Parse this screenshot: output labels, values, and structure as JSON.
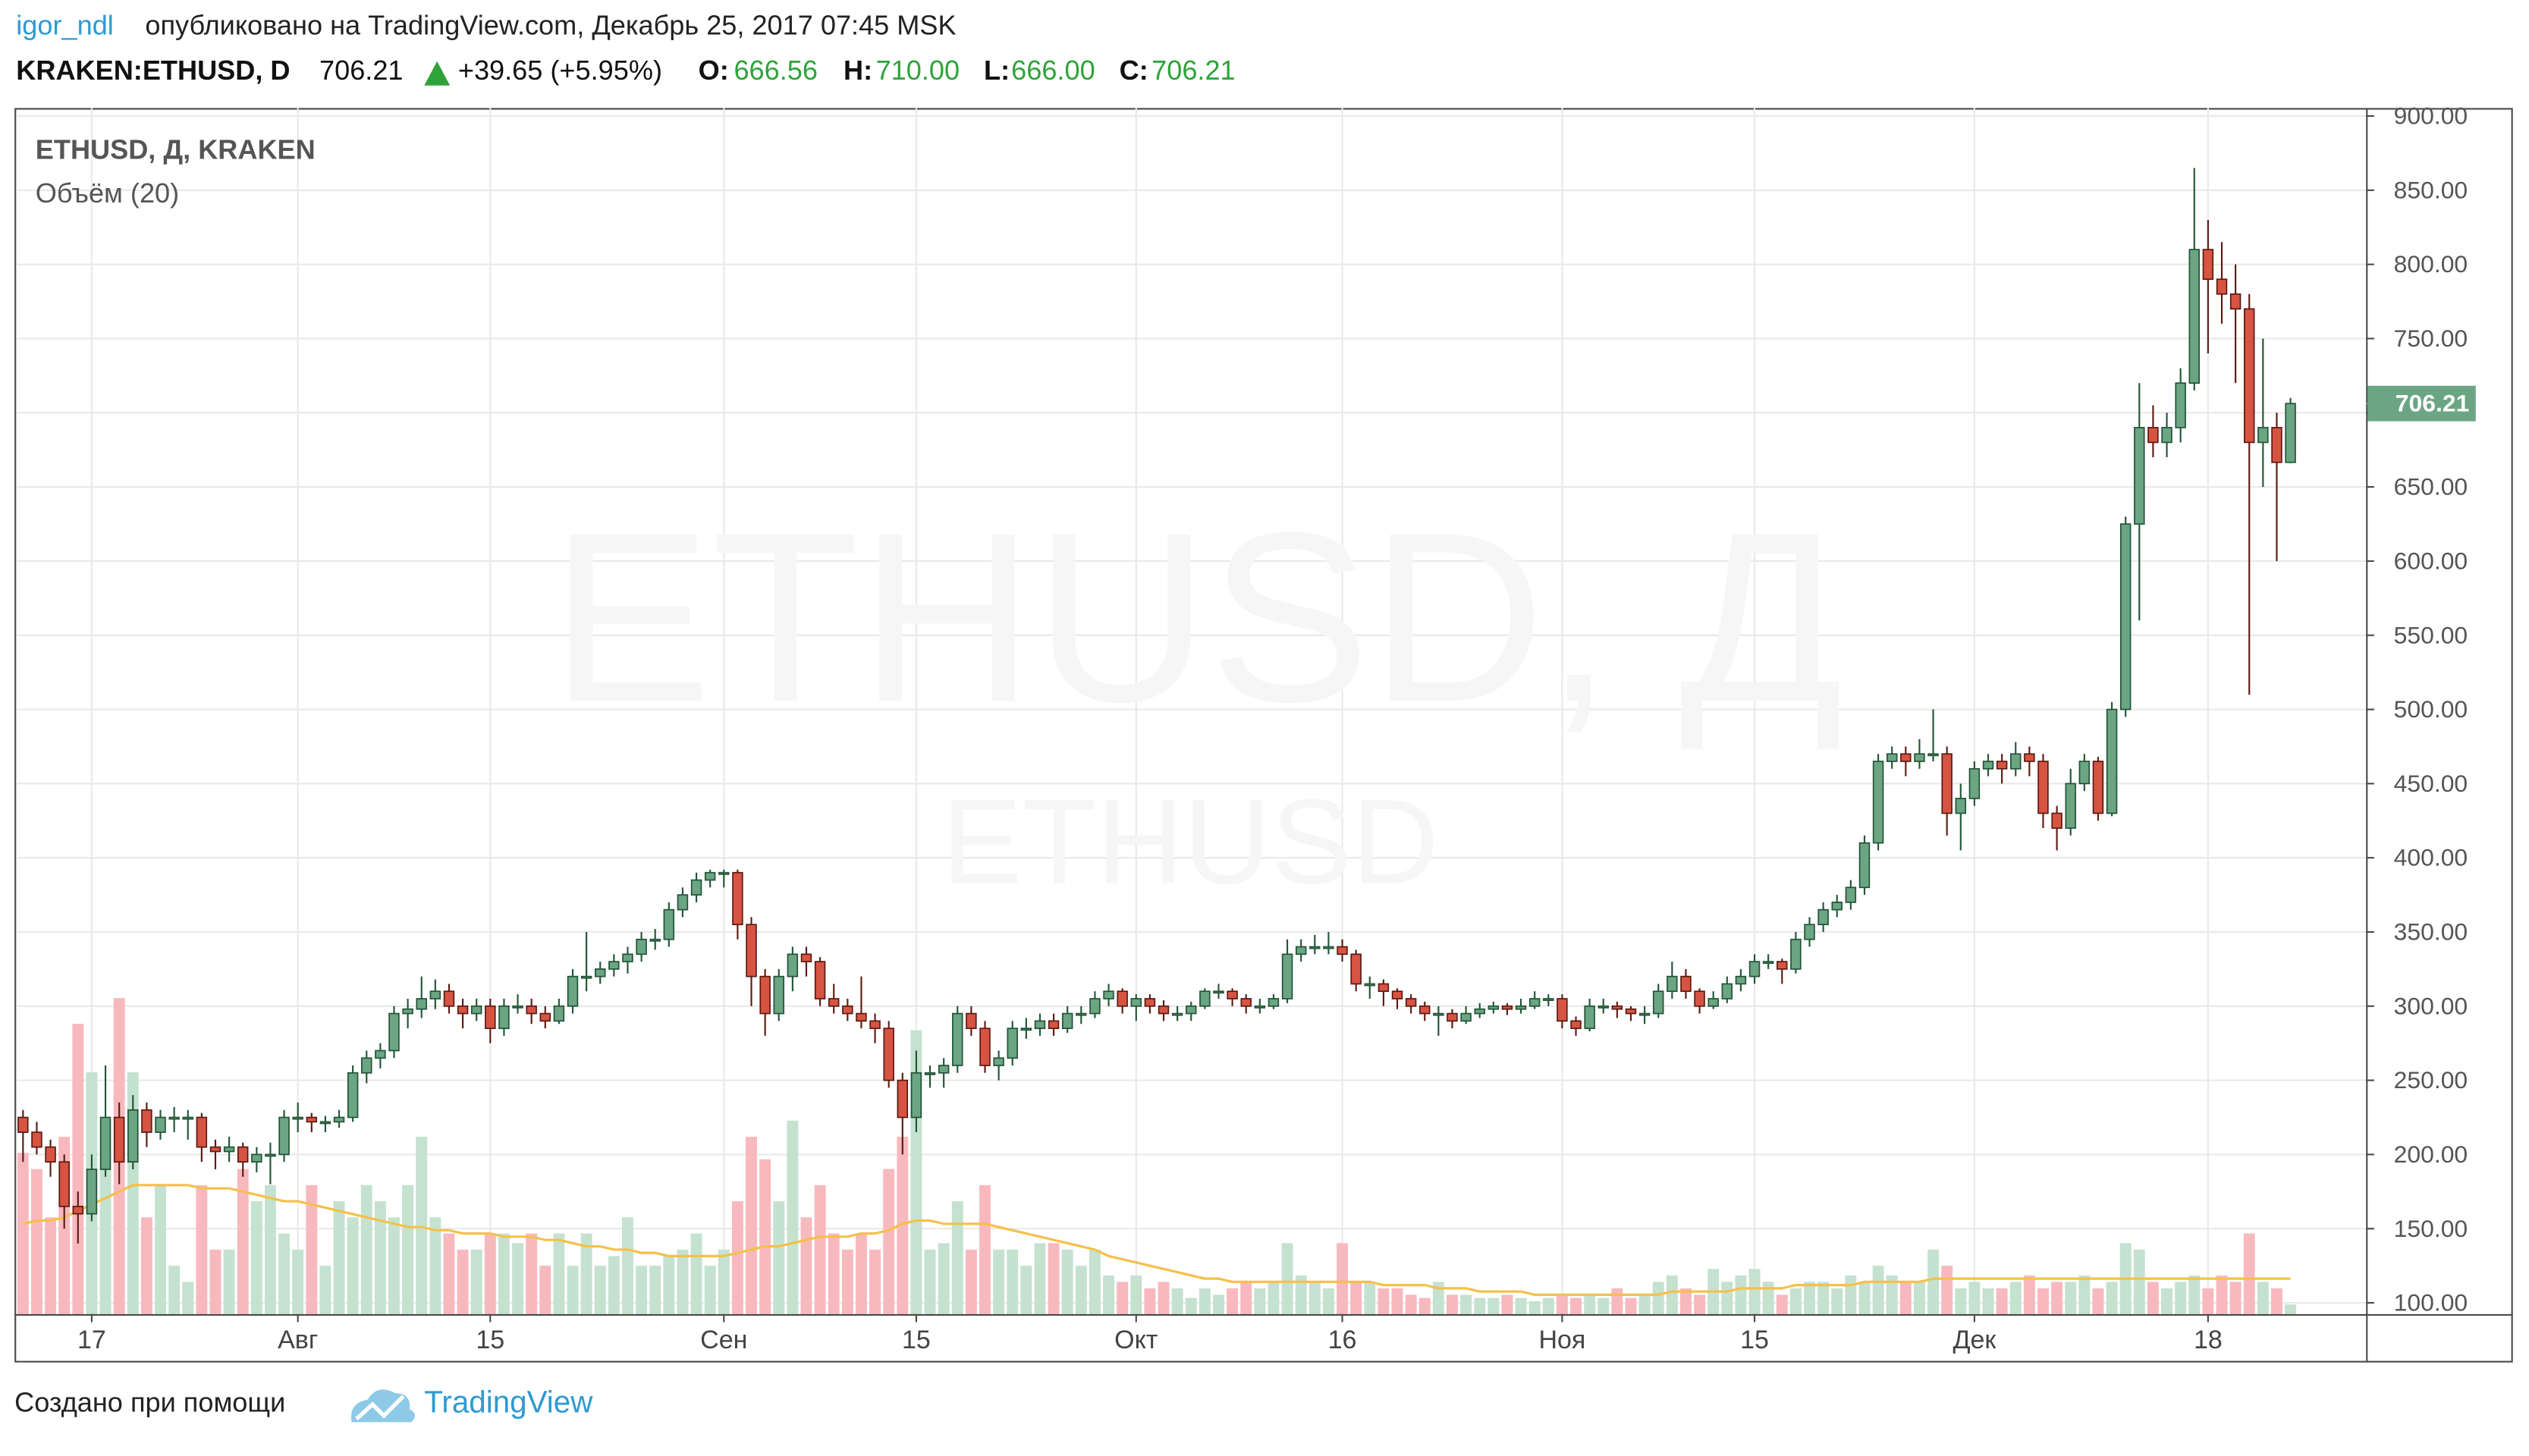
{
  "header": {
    "author": "igor_ndl",
    "published": "опубликовано на TradingView.com, Декабрь 25, 2017 07:45 MSK"
  },
  "quote": {
    "symbol": "KRAKEN:ETHUSD, D",
    "last": "706.21",
    "change": "+39.65 (+5.95%)",
    "fields": [
      [
        "O:",
        "666.56"
      ],
      [
        "H:",
        "710.00"
      ],
      [
        "L:",
        "666.00"
      ],
      [
        "C:",
        "706.21"
      ]
    ]
  },
  "chart_data": {
    "type": "candlestick",
    "title": "ETHUSD, Д, KRAKEN",
    "indicator": "Объём (20)",
    "watermark": "ETHUSD, Д",
    "watermark_sub": "ETHUSD",
    "up_color": "#6ba583",
    "down_color": "#d75442",
    "up_border": "#225437",
    "down_border": "#5b1a13",
    "up_volume_color": "#c4e2cf",
    "down_volume_color": "#f7b9be",
    "ma_color": "#f5c04a",
    "grid": true,
    "ylim": [
      92.4,
      905.4
    ],
    "yticks": [
      {
        "value": 100,
        "label": "100.00"
      },
      {
        "value": 150,
        "label": "150.00"
      },
      {
        "value": 200,
        "label": "200.00"
      },
      {
        "value": 250,
        "label": "250.00"
      },
      {
        "value": 300,
        "label": "300.00"
      },
      {
        "value": 350,
        "label": "350.00"
      },
      {
        "value": 400,
        "label": "400.00"
      },
      {
        "value": 450,
        "label": "450.00"
      },
      {
        "value": 500,
        "label": "500.00"
      },
      {
        "value": 550,
        "label": "550.00"
      },
      {
        "value": 600,
        "label": "600.00"
      },
      {
        "value": 650,
        "label": "650.00"
      },
      {
        "value": 700,
        "label": "700.00"
      },
      {
        "value": 750,
        "label": "750.00"
      },
      {
        "value": 800,
        "label": "800.00"
      },
      {
        "value": 850,
        "label": "850.00"
      },
      {
        "value": 900,
        "label": "900.00"
      }
    ],
    "xlim": [
      -0.5,
      170.5
    ],
    "xticks": [
      {
        "value": 5,
        "label": "17"
      },
      {
        "value": 20,
        "label": "Авг"
      },
      {
        "value": 34,
        "label": "15"
      },
      {
        "value": 51,
        "label": "Сен"
      },
      {
        "value": 65,
        "label": "15"
      },
      {
        "value": 81,
        "label": "Окт"
      },
      {
        "value": 96,
        "label": "16"
      },
      {
        "value": 112,
        "label": "Ноя"
      },
      {
        "value": 126,
        "label": "15"
      },
      {
        "value": 142,
        "label": "Дек"
      },
      {
        "value": 159,
        "label": "18"
      }
    ],
    "volume_ylim": [
      0,
      100
    ],
    "candles": [
      [
        225,
        230,
        195,
        215
      ],
      [
        215,
        222,
        200,
        205
      ],
      [
        205,
        210,
        185,
        195
      ],
      [
        195,
        200,
        150,
        165
      ],
      [
        165,
        175,
        140,
        160
      ],
      [
        160,
        200,
        155,
        190
      ],
      [
        190,
        260,
        185,
        225
      ],
      [
        225,
        235,
        180,
        195
      ],
      [
        195,
        240,
        190,
        230
      ],
      [
        230,
        235,
        205,
        215
      ],
      [
        215,
        230,
        210,
        225
      ],
      [
        225,
        232,
        215,
        225
      ],
      [
        225,
        230,
        210,
        225
      ],
      [
        225,
        228,
        195,
        205
      ],
      [
        205,
        210,
        190,
        202
      ],
      [
        202,
        212,
        195,
        205
      ],
      [
        205,
        208,
        185,
        195
      ],
      [
        195,
        205,
        188,
        200
      ],
      [
        200,
        208,
        180,
        200
      ],
      [
        200,
        230,
        195,
        225
      ],
      [
        225,
        235,
        215,
        225
      ],
      [
        225,
        228,
        215,
        222
      ],
      [
        222,
        226,
        215,
        222
      ],
      [
        222,
        230,
        218,
        225
      ],
      [
        225,
        260,
        222,
        255
      ],
      [
        255,
        270,
        248,
        265
      ],
      [
        265,
        275,
        258,
        270
      ],
      [
        270,
        300,
        265,
        295
      ],
      [
        295,
        305,
        285,
        298
      ],
      [
        298,
        320,
        292,
        305
      ],
      [
        305,
        318,
        298,
        310
      ],
      [
        310,
        315,
        295,
        300
      ],
      [
        300,
        305,
        285,
        295
      ],
      [
        295,
        305,
        290,
        300
      ],
      [
        300,
        305,
        275,
        285
      ],
      [
        285,
        305,
        280,
        300
      ],
      [
        300,
        308,
        295,
        300
      ],
      [
        300,
        305,
        288,
        295
      ],
      [
        295,
        300,
        285,
        290
      ],
      [
        290,
        305,
        288,
        300
      ],
      [
        300,
        325,
        295,
        320
      ],
      [
        320,
        350,
        310,
        320
      ],
      [
        320,
        330,
        315,
        325
      ],
      [
        325,
        335,
        320,
        330
      ],
      [
        330,
        340,
        322,
        335
      ],
      [
        335,
        350,
        330,
        345
      ],
      [
        345,
        352,
        338,
        345
      ],
      [
        345,
        370,
        340,
        365
      ],
      [
        365,
        380,
        360,
        375
      ],
      [
        375,
        390,
        370,
        385
      ],
      [
        385,
        392,
        380,
        390
      ],
      [
        390,
        392,
        380,
        390
      ],
      [
        390,
        392,
        345,
        355
      ],
      [
        355,
        360,
        300,
        320
      ],
      [
        320,
        325,
        280,
        295
      ],
      [
        295,
        325,
        290,
        320
      ],
      [
        320,
        340,
        310,
        335
      ],
      [
        335,
        340,
        320,
        330
      ],
      [
        330,
        333,
        300,
        305
      ],
      [
        305,
        315,
        295,
        300
      ],
      [
        300,
        305,
        290,
        295
      ],
      [
        295,
        320,
        285,
        290
      ],
      [
        290,
        295,
        275,
        285
      ],
      [
        285,
        290,
        245,
        250
      ],
      [
        250,
        255,
        200,
        225
      ],
      [
        225,
        270,
        215,
        255
      ],
      [
        255,
        260,
        245,
        255
      ],
      [
        255,
        265,
        245,
        260
      ],
      [
        260,
        300,
        255,
        295
      ],
      [
        295,
        300,
        280,
        285
      ],
      [
        285,
        290,
        255,
        260
      ],
      [
        260,
        270,
        250,
        265
      ],
      [
        265,
        290,
        260,
        285
      ],
      [
        285,
        292,
        278,
        285
      ],
      [
        285,
        295,
        280,
        290
      ],
      [
        290,
        295,
        280,
        285
      ],
      [
        285,
        300,
        282,
        295
      ],
      [
        295,
        300,
        288,
        295
      ],
      [
        295,
        310,
        292,
        305
      ],
      [
        305,
        315,
        300,
        310
      ],
      [
        310,
        312,
        295,
        300
      ],
      [
        300,
        308,
        290,
        305
      ],
      [
        305,
        308,
        295,
        300
      ],
      [
        300,
        304,
        290,
        295
      ],
      [
        295,
        300,
        290,
        295
      ],
      [
        295,
        303,
        290,
        300
      ],
      [
        300,
        312,
        298,
        310
      ],
      [
        310,
        315,
        305,
        310
      ],
      [
        310,
        312,
        300,
        305
      ],
      [
        305,
        308,
        295,
        300
      ],
      [
        300,
        305,
        295,
        300
      ],
      [
        300,
        308,
        298,
        305
      ],
      [
        305,
        345,
        302,
        335
      ],
      [
        335,
        345,
        330,
        340
      ],
      [
        340,
        348,
        335,
        340
      ],
      [
        340,
        350,
        335,
        340
      ],
      [
        340,
        345,
        330,
        335
      ],
      [
        335,
        338,
        310,
        315
      ],
      [
        315,
        320,
        305,
        315
      ],
      [
        315,
        318,
        300,
        310
      ],
      [
        310,
        312,
        298,
        305
      ],
      [
        305,
        308,
        295,
        300
      ],
      [
        300,
        303,
        290,
        295
      ],
      [
        295,
        300,
        280,
        295
      ],
      [
        295,
        298,
        285,
        290
      ],
      [
        290,
        300,
        288,
        295
      ],
      [
        295,
        302,
        292,
        298
      ],
      [
        298,
        303,
        295,
        300
      ],
      [
        300,
        302,
        294,
        298
      ],
      [
        298,
        305,
        295,
        300
      ],
      [
        300,
        310,
        298,
        305
      ],
      [
        305,
        308,
        300,
        305
      ],
      [
        305,
        308,
        285,
        290
      ],
      [
        290,
        293,
        280,
        285
      ],
      [
        285,
        305,
        283,
        300
      ],
      [
        300,
        305,
        295,
        300
      ],
      [
        300,
        303,
        292,
        298
      ],
      [
        298,
        300,
        290,
        295
      ],
      [
        295,
        300,
        288,
        295
      ],
      [
        295,
        315,
        292,
        310
      ],
      [
        310,
        330,
        305,
        320
      ],
      [
        320,
        325,
        305,
        310
      ],
      [
        310,
        312,
        295,
        300
      ],
      [
        300,
        310,
        298,
        305
      ],
      [
        305,
        320,
        302,
        315
      ],
      [
        315,
        325,
        310,
        320
      ],
      [
        320,
        335,
        315,
        330
      ],
      [
        330,
        335,
        325,
        330
      ],
      [
        330,
        332,
        315,
        325
      ],
      [
        325,
        350,
        322,
        345
      ],
      [
        345,
        360,
        340,
        355
      ],
      [
        355,
        370,
        350,
        365
      ],
      [
        365,
        375,
        360,
        370
      ],
      [
        370,
        385,
        365,
        380
      ],
      [
        380,
        415,
        375,
        410
      ],
      [
        410,
        470,
        405,
        465
      ],
      [
        465,
        475,
        460,
        470
      ],
      [
        470,
        475,
        455,
        465
      ],
      [
        465,
        480,
        460,
        470
      ],
      [
        470,
        500,
        465,
        470
      ],
      [
        470,
        475,
        415,
        430
      ],
      [
        430,
        450,
        405,
        440
      ],
      [
        440,
        465,
        435,
        460
      ],
      [
        460,
        470,
        455,
        465
      ],
      [
        465,
        470,
        450,
        460
      ],
      [
        460,
        478,
        455,
        470
      ],
      [
        470,
        475,
        455,
        465
      ],
      [
        465,
        470,
        420,
        430
      ],
      [
        430,
        435,
        405,
        420
      ],
      [
        420,
        460,
        415,
        450
      ],
      [
        450,
        470,
        445,
        465
      ],
      [
        465,
        468,
        425,
        430
      ],
      [
        430,
        505,
        428,
        500
      ],
      [
        500,
        630,
        495,
        625
      ],
      [
        625,
        720,
        560,
        690
      ],
      [
        690,
        705,
        670,
        680
      ],
      [
        680,
        700,
        670,
        690
      ],
      [
        690,
        730,
        680,
        720
      ],
      [
        720,
        865,
        715,
        810
      ],
      [
        810,
        830,
        740,
        790
      ],
      [
        790,
        815,
        760,
        780
      ],
      [
        780,
        800,
        720,
        770
      ],
      [
        770,
        780,
        510,
        680
      ],
      [
        680,
        750,
        650,
        690
      ],
      [
        690,
        700,
        600,
        666.56
      ],
      [
        666.56,
        710,
        666,
        706.21
      ]
    ],
    "volume": [
      50,
      45,
      30,
      55,
      90,
      75,
      60,
      98,
      75,
      30,
      40,
      15,
      10,
      40,
      20,
      20,
      45,
      35,
      40,
      25,
      20,
      40,
      15,
      35,
      30,
      40,
      35,
      30,
      40,
      55,
      30,
      25,
      20,
      20,
      25,
      25,
      22,
      25,
      15,
      25,
      15,
      25,
      15,
      18,
      30,
      15,
      15,
      18,
      20,
      25,
      15,
      20,
      35,
      55,
      48,
      35,
      60,
      30,
      40,
      25,
      20,
      25,
      20,
      45,
      55,
      88,
      20,
      22,
      35,
      20,
      40,
      20,
      20,
      15,
      22,
      22,
      20,
      15,
      20,
      12,
      10,
      12,
      8,
      10,
      8,
      5,
      8,
      6,
      8,
      10,
      8,
      10,
      22,
      12,
      10,
      8,
      22,
      10,
      10,
      8,
      8,
      6,
      5,
      10,
      6,
      6,
      5,
      5,
      6,
      5,
      4,
      5,
      6,
      5,
      6,
      5,
      8,
      5,
      6,
      10,
      12,
      8,
      6,
      14,
      10,
      12,
      14,
      10,
      6,
      8,
      10,
      10,
      8,
      12,
      10,
      15,
      12,
      10,
      10,
      20,
      15,
      8,
      10,
      8,
      8,
      10,
      12,
      8,
      10,
      10,
      12,
      8,
      10,
      22,
      20,
      10,
      8,
      10,
      12,
      8,
      12,
      10,
      25,
      10,
      8,
      3
    ],
    "volume_ma": [
      28,
      29,
      29,
      30,
      32,
      34,
      36,
      38,
      40,
      40,
      40,
      40,
      40,
      39,
      39,
      39,
      38,
      37,
      36,
      35,
      35,
      34,
      33,
      32,
      31,
      30,
      29,
      28,
      27,
      27,
      26,
      26,
      25,
      25,
      25,
      24,
      24,
      24,
      23,
      23,
      22,
      21,
      21,
      20,
      20,
      19,
      19,
      18,
      18,
      18,
      18,
      18,
      19,
      20,
      21,
      21,
      22,
      23,
      24,
      24,
      24,
      25,
      25,
      26,
      28,
      29,
      29,
      28,
      28,
      28,
      28,
      27,
      26,
      25,
      24,
      23,
      22,
      21,
      20,
      18,
      17,
      16,
      15,
      14,
      13,
      12,
      11,
      11,
      10,
      10,
      10,
      10,
      10,
      10,
      10,
      10,
      10,
      10,
      10,
      9,
      9,
      9,
      9,
      8,
      8,
      8,
      7,
      7,
      7,
      7,
      6,
      6,
      6,
      6,
      6,
      6,
      6,
      6,
      6,
      6,
      7,
      7,
      7,
      7,
      7,
      8,
      8,
      8,
      8,
      9,
      9,
      9,
      9,
      9,
      10,
      10,
      10,
      10,
      10,
      11,
      11,
      11,
      11,
      11,
      11,
      11,
      11,
      11,
      11,
      11,
      11,
      11,
      11,
      11,
      11,
      11,
      11,
      11,
      11,
      11,
      11,
      11,
      11,
      11,
      11,
      11
    ]
  },
  "footer": {
    "text": "Создано при помощи",
    "brand": "TradingView"
  }
}
